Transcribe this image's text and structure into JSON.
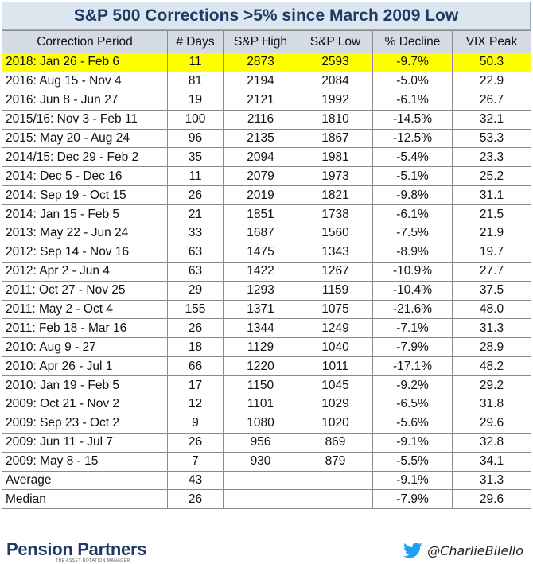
{
  "title": "S&P 500 Corrections >5% since March 2009 Low",
  "colors": {
    "highlight": "#ffff00",
    "header_bg": "#d5dbe5",
    "title_bg": "#dce6f1",
    "brand": "#1e3a63",
    "twitter": "#1da1f2"
  },
  "chart_data": {
    "type": "table",
    "title": "S&P 500 Corrections >5% since March 2009 Low",
    "columns": [
      "Correction Period",
      "# Days",
      "S&P High",
      "S&P Low",
      "% Decline",
      "VIX Peak"
    ],
    "rows": [
      [
        "2018: Jan 26 - Feb 6",
        "11",
        "2873",
        "2593",
        "-9.7%",
        "50.3"
      ],
      [
        "2016: Aug 15 - Nov 4",
        "81",
        "2194",
        "2084",
        "-5.0%",
        "22.9"
      ],
      [
        "2016: Jun 8 - Jun 27",
        "19",
        "2121",
        "1992",
        "-6.1%",
        "26.7"
      ],
      [
        "2015/16: Nov 3 - Feb 11",
        "100",
        "2116",
        "1810",
        "-14.5%",
        "32.1"
      ],
      [
        "2015: May 20 - Aug 24",
        "96",
        "2135",
        "1867",
        "-12.5%",
        "53.3"
      ],
      [
        "2014/15: Dec 29 - Feb 2",
        "35",
        "2094",
        "1981",
        "-5.4%",
        "23.3"
      ],
      [
        "2014: Dec 5 - Dec 16",
        "11",
        "2079",
        "1973",
        "-5.1%",
        "25.2"
      ],
      [
        "2014: Sep 19 - Oct 15",
        "26",
        "2019",
        "1821",
        "-9.8%",
        "31.1"
      ],
      [
        "2014: Jan 15 - Feb 5",
        "21",
        "1851",
        "1738",
        "-6.1%",
        "21.5"
      ],
      [
        "2013: May 22 - Jun 24",
        "33",
        "1687",
        "1560",
        "-7.5%",
        "21.9"
      ],
      [
        "2012: Sep 14 - Nov 16",
        "63",
        "1475",
        "1343",
        "-8.9%",
        "19.7"
      ],
      [
        "2012: Apr 2 - Jun 4",
        "63",
        "1422",
        "1267",
        "-10.9%",
        "27.7"
      ],
      [
        "2011: Oct 27 - Nov 25",
        "29",
        "1293",
        "1159",
        "-10.4%",
        "37.5"
      ],
      [
        "2011: May 2 - Oct 4",
        "155",
        "1371",
        "1075",
        "-21.6%",
        "48.0"
      ],
      [
        "2011: Feb 18 - Mar 16",
        "26",
        "1344",
        "1249",
        "-7.1%",
        "31.3"
      ],
      [
        "2010: Aug 9 - 27",
        "18",
        "1129",
        "1040",
        "-7.9%",
        "28.9"
      ],
      [
        "2010: Apr 26 - Jul 1",
        "66",
        "1220",
        "1011",
        "-17.1%",
        "48.2"
      ],
      [
        "2010: Jan 19 - Feb 5",
        "17",
        "1150",
        "1045",
        "-9.2%",
        "29.2"
      ],
      [
        "2009: Oct 21 - Nov 2",
        "12",
        "1101",
        "1029",
        "-6.5%",
        "31.8"
      ],
      [
        "2009: Sep 23 - Oct 2",
        "9",
        "1080",
        "1020",
        "-5.6%",
        "29.6"
      ],
      [
        "2009: Jun 11 - Jul 7",
        "26",
        "956",
        "869",
        "-9.1%",
        "32.8"
      ],
      [
        "2009: May 8 - 15",
        "7",
        "930",
        "879",
        "-5.5%",
        "34.1"
      ]
    ],
    "highlighted_row": 0,
    "summary_rows": [
      [
        "Average",
        "43",
        "",
        "",
        "-9.1%",
        "31.3"
      ],
      [
        "Median",
        "26",
        "",
        "",
        "-7.9%",
        "29.6"
      ]
    ]
  },
  "footer": {
    "logo": "Pension Partners",
    "logo_tagline": "THE ASSET ROTATION MANAGER",
    "handle": "@CharlieBilello",
    "twitter_icon": "twitter-bird-icon"
  }
}
